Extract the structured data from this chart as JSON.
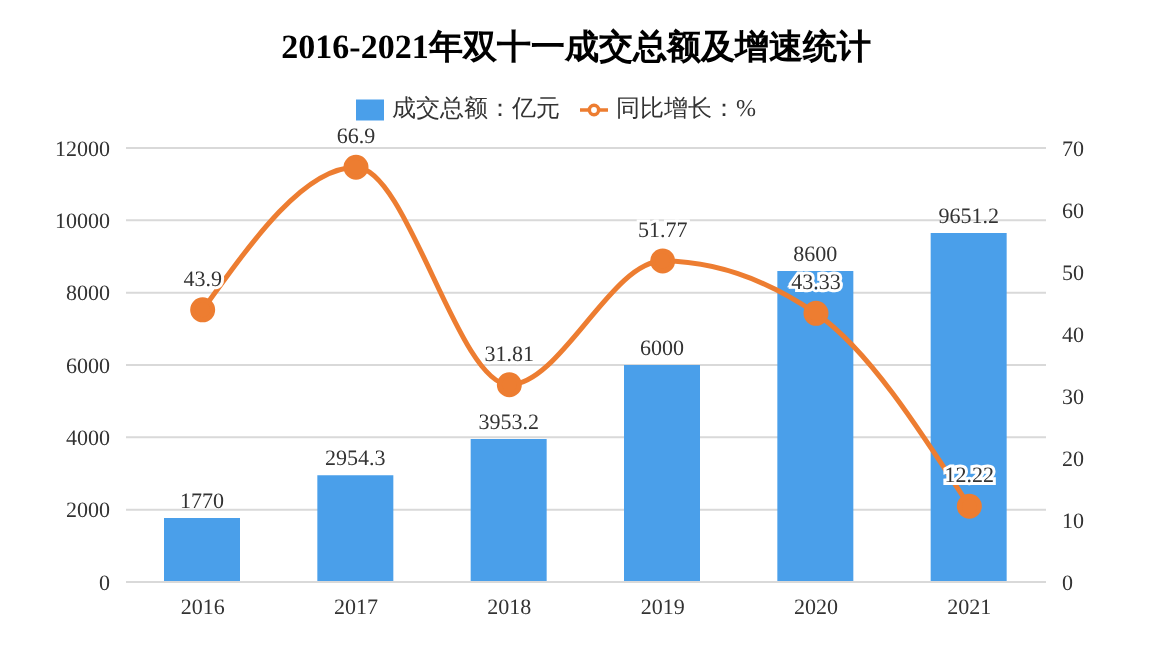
{
  "chart_data": {
    "type": "bar",
    "title": "2016-2021年双十一成交总额及增速统计",
    "categories": [
      "2016",
      "2017",
      "2018",
      "2019",
      "2020",
      "2021"
    ],
    "series": [
      {
        "name": "成交总额：亿元",
        "color": "#4a9fea",
        "values": [
          1770,
          2954.3,
          3953.2,
          6000,
          8600,
          9651.2
        ]
      },
      {
        "name": "同比增长：%",
        "type": "line",
        "axis": "y2",
        "color": "#ed7d31",
        "values": [
          43.9,
          66.9,
          31.81,
          51.77,
          43.33,
          12.22
        ],
        "marker": "circle"
      }
    ],
    "ylim": [
      0,
      12000
    ],
    "yticks": [
      0,
      2000,
      4000,
      6000,
      8000,
      10000,
      12000
    ],
    "y2lim": [
      0,
      70
    ],
    "y2ticks": [
      0,
      10,
      20,
      30,
      40,
      50,
      60,
      70
    ],
    "grid": "y",
    "legend": "top",
    "data_labels": true
  }
}
